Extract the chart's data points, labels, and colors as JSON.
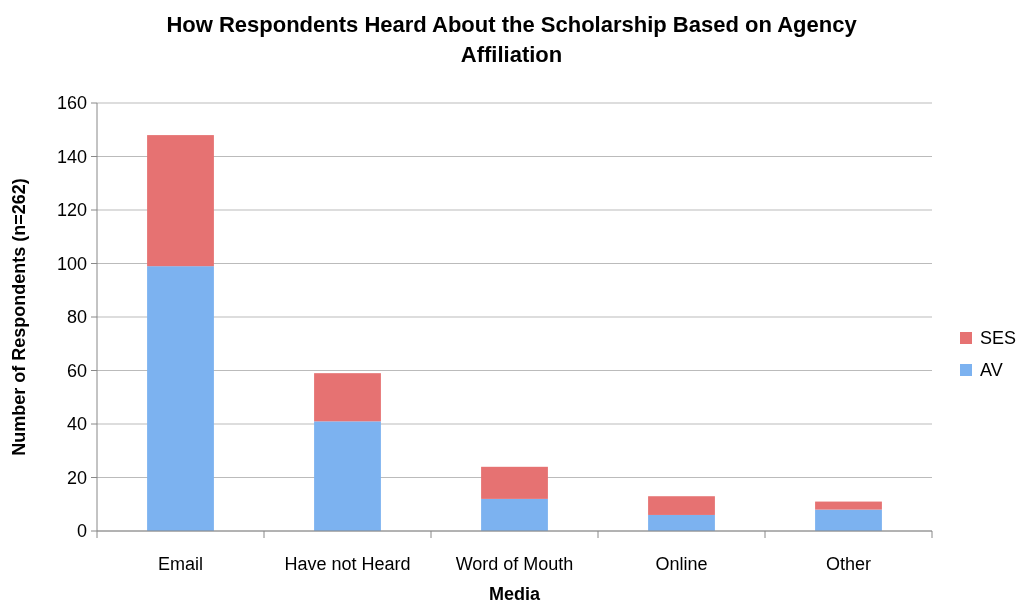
{
  "chart_data": {
    "type": "bar",
    "title": "How Respondents Heard About the Scholarship Based on Agency Affiliation",
    "xlabel": "Media",
    "ylabel": "Number of Respondents (n=262)",
    "categories": [
      "Email",
      "Have not Heard",
      "Word of Mouth",
      "Online",
      "Other"
    ],
    "stacked": true,
    "series": [
      {
        "name": "AV",
        "color": "#7cb2f0",
        "values": [
          99,
          41,
          12,
          6,
          8
        ]
      },
      {
        "name": "SES",
        "color": "#e67272",
        "values": [
          49,
          18,
          12,
          7,
          3
        ]
      }
    ],
    "ylim": [
      0,
      160
    ],
    "yticks": [
      0,
      20,
      40,
      60,
      80,
      100,
      120,
      140,
      160
    ],
    "grid": "y",
    "legend": "right"
  }
}
